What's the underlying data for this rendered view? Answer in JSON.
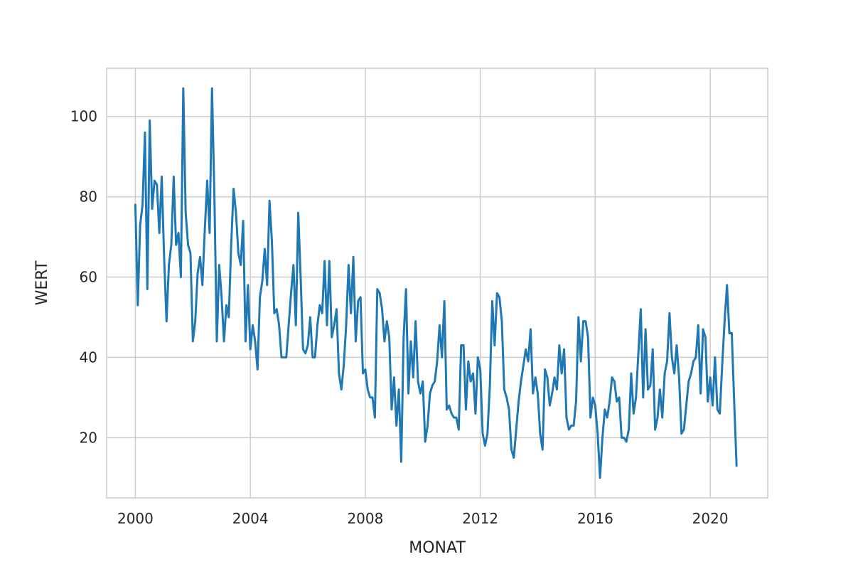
{
  "chart_data": {
    "type": "line",
    "title": "",
    "xlabel": "MONAT",
    "ylabel": "WERT",
    "xlim": [
      "1999-01",
      "2022-01"
    ],
    "ylim": [
      5,
      112
    ],
    "x_ticks": [
      "2000",
      "2004",
      "2008",
      "2012",
      "2016",
      "2020"
    ],
    "y_ticks": [
      20,
      40,
      60,
      80,
      100
    ],
    "grid": true,
    "legend": "none",
    "colors": {
      "line": "#1f77b4",
      "grid": "#cccccc",
      "text": "#262626"
    },
    "series": [
      {
        "x": [
          "2000-01",
          "2000-02",
          "2000-03",
          "2000-04",
          "2000-05",
          "2000-06",
          "2000-07",
          "2000-08",
          "2000-09",
          "2000-10",
          "2000-11",
          "2000-12",
          "2001-01",
          "2001-02",
          "2001-03",
          "2001-04",
          "2001-05",
          "2001-06",
          "2001-07",
          "2001-08",
          "2001-09",
          "2001-10",
          "2001-11",
          "2001-12",
          "2002-01",
          "2002-02",
          "2002-03",
          "2002-04",
          "2002-05",
          "2002-06",
          "2002-07",
          "2002-08",
          "2002-09",
          "2002-10",
          "2002-11",
          "2002-12",
          "2003-01",
          "2003-02",
          "2003-03",
          "2003-04",
          "2003-05",
          "2003-06",
          "2003-07",
          "2003-08",
          "2003-09",
          "2003-10",
          "2003-11",
          "2003-12",
          "2004-01",
          "2004-02",
          "2004-03",
          "2004-04",
          "2004-05",
          "2004-06",
          "2004-07",
          "2004-08",
          "2004-09",
          "2004-10",
          "2004-11",
          "2004-12",
          "2005-01",
          "2005-02",
          "2005-03",
          "2005-04",
          "2005-05",
          "2005-06",
          "2005-07",
          "2005-08",
          "2005-09",
          "2005-10",
          "2005-11",
          "2005-12",
          "2006-01",
          "2006-02",
          "2006-03",
          "2006-04",
          "2006-05",
          "2006-06",
          "2006-07",
          "2006-08",
          "2006-09",
          "2006-10",
          "2006-11",
          "2006-12",
          "2007-01",
          "2007-02",
          "2007-03",
          "2007-04",
          "2007-05",
          "2007-06",
          "2007-07",
          "2007-08",
          "2007-09",
          "2007-10",
          "2007-11",
          "2007-12",
          "2008-01",
          "2008-02",
          "2008-03",
          "2008-04",
          "2008-05",
          "2008-06",
          "2008-07",
          "2008-08",
          "2008-09",
          "2008-10",
          "2008-11",
          "2008-12",
          "2009-01",
          "2009-02",
          "2009-03",
          "2009-04",
          "2009-05",
          "2009-06",
          "2009-07",
          "2009-08",
          "2009-09",
          "2009-10",
          "2009-11",
          "2009-12",
          "2010-01",
          "2010-02",
          "2010-03",
          "2010-04",
          "2010-05",
          "2010-06",
          "2010-07",
          "2010-08",
          "2010-09",
          "2010-10",
          "2010-11",
          "2010-12",
          "2011-01",
          "2011-02",
          "2011-03",
          "2011-04",
          "2011-05",
          "2011-06",
          "2011-07",
          "2011-08",
          "2011-09",
          "2011-10",
          "2011-11",
          "2011-12",
          "2012-01",
          "2012-02",
          "2012-03",
          "2012-04",
          "2012-05",
          "2012-06",
          "2012-07",
          "2012-08",
          "2012-09",
          "2012-10",
          "2012-11",
          "2012-12",
          "2013-01",
          "2013-02",
          "2013-03",
          "2013-04",
          "2013-05",
          "2013-06",
          "2013-07",
          "2013-08",
          "2013-09",
          "2013-10",
          "2013-11",
          "2013-12",
          "2014-01",
          "2014-02",
          "2014-03",
          "2014-04",
          "2014-05",
          "2014-06",
          "2014-07",
          "2014-08",
          "2014-09",
          "2014-10",
          "2014-11",
          "2014-12",
          "2015-01",
          "2015-02",
          "2015-03",
          "2015-04",
          "2015-05",
          "2015-06",
          "2015-07",
          "2015-08",
          "2015-09",
          "2015-10",
          "2015-11",
          "2015-12",
          "2016-01",
          "2016-02",
          "2016-03",
          "2016-04",
          "2016-05",
          "2016-06",
          "2016-07",
          "2016-08",
          "2016-09",
          "2016-10",
          "2016-11",
          "2016-12",
          "2017-01",
          "2017-02",
          "2017-03",
          "2017-04",
          "2017-05",
          "2017-06",
          "2017-07",
          "2017-08",
          "2017-09",
          "2017-10",
          "2017-11",
          "2017-12",
          "2018-01",
          "2018-02",
          "2018-03",
          "2018-04",
          "2018-05",
          "2018-06",
          "2018-07",
          "2018-08",
          "2018-09",
          "2018-10",
          "2018-11",
          "2018-12",
          "2019-01",
          "2019-02",
          "2019-03",
          "2019-04",
          "2019-05",
          "2019-06",
          "2019-07",
          "2019-08",
          "2019-09",
          "2019-10",
          "2019-11",
          "2019-12",
          "2020-01",
          "2020-02",
          "2020-03",
          "2020-04",
          "2020-05",
          "2020-06",
          "2020-07",
          "2020-08",
          "2020-09",
          "2020-10",
          "2020-11",
          "2020-12"
        ],
        "y": [
          78,
          53,
          73,
          78,
          96,
          57,
          99,
          77,
          84,
          83,
          71,
          85,
          65,
          49,
          63,
          68,
          85,
          68,
          71,
          60,
          107,
          76,
          68,
          66,
          44,
          49,
          61,
          65,
          58,
          72,
          84,
          71,
          107,
          80,
          44,
          63,
          55,
          44,
          53,
          50,
          68,
          82,
          76,
          66,
          63,
          74,
          44,
          58,
          42,
          48,
          44,
          37,
          55,
          59,
          67,
          58,
          79,
          69,
          51,
          52,
          48,
          40,
          40,
          40,
          48,
          56,
          63,
          48,
          76,
          60,
          42,
          41,
          43,
          50,
          40,
          40,
          48,
          53,
          51,
          64,
          48,
          64,
          45,
          48,
          52,
          36,
          32,
          38,
          48,
          63,
          51,
          65,
          44,
          54,
          55,
          36,
          37,
          32,
          30,
          30,
          25,
          57,
          56,
          52,
          44,
          49,
          45,
          27,
          35,
          23,
          32,
          14,
          45,
          57,
          31,
          44,
          35,
          49,
          34,
          31,
          34,
          19,
          23,
          31,
          33,
          34,
          39,
          48,
          40,
          54,
          27,
          28,
          26,
          25,
          25,
          22,
          43,
          43,
          27,
          39,
          34,
          36,
          26,
          40,
          37,
          21,
          18,
          21,
          33,
          54,
          43,
          56,
          55,
          49,
          32,
          30,
          27,
          17,
          15,
          22,
          29,
          34,
          38,
          42,
          39,
          47,
          31,
          35,
          31,
          21,
          17,
          37,
          35,
          28,
          31,
          35,
          32,
          43,
          36,
          42,
          25,
          22,
          23,
          23,
          29,
          50,
          39,
          49,
          49,
          45,
          25,
          30,
          28,
          21,
          10,
          20,
          27,
          25,
          29,
          35,
          34,
          29,
          30,
          20,
          20,
          19,
          22,
          36,
          26,
          30,
          41,
          52,
          30,
          47,
          32,
          33,
          42,
          22,
          25,
          32,
          25,
          36,
          39,
          51,
          40,
          36,
          43,
          35,
          21,
          22,
          28,
          34,
          36,
          39,
          40,
          48,
          31,
          47,
          45,
          29,
          35,
          28,
          40,
          27,
          26,
          38,
          49,
          58,
          46,
          46,
          29,
          13
        ]
      }
    ]
  }
}
